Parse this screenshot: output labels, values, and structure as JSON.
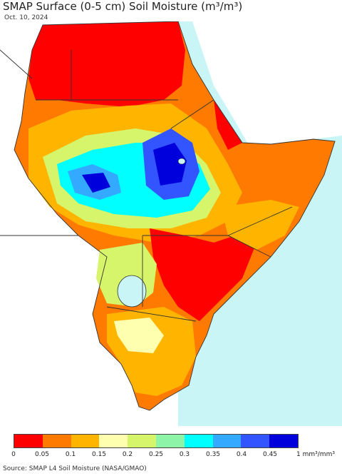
{
  "title": "SMAP Surface (0-5 cm) Soil Moisture (m³/m³)",
  "date": "Oct. 10, 2024",
  "source": "Source: SMAP L4 Soil Moisture (NASA/GMAO)",
  "colorbar": {
    "colors": [
      "#ff0000",
      "#ff7a00",
      "#ffb400",
      "#ffffb0",
      "#d6f56a",
      "#8ef5a8",
      "#00ffff",
      "#33aaff",
      "#3355ff",
      "#0000dd"
    ],
    "labels": [
      "0",
      "0.05",
      "0.1",
      "0.15",
      "0.2",
      "0.25",
      "0.3",
      "0.35",
      "0.4",
      "0.45",
      "1 mm³/mm³"
    ]
  },
  "map_colors": {
    "ocean": "#c9f5f6",
    "outside_land": "#ffffff",
    "boundary": "#333333"
  }
}
